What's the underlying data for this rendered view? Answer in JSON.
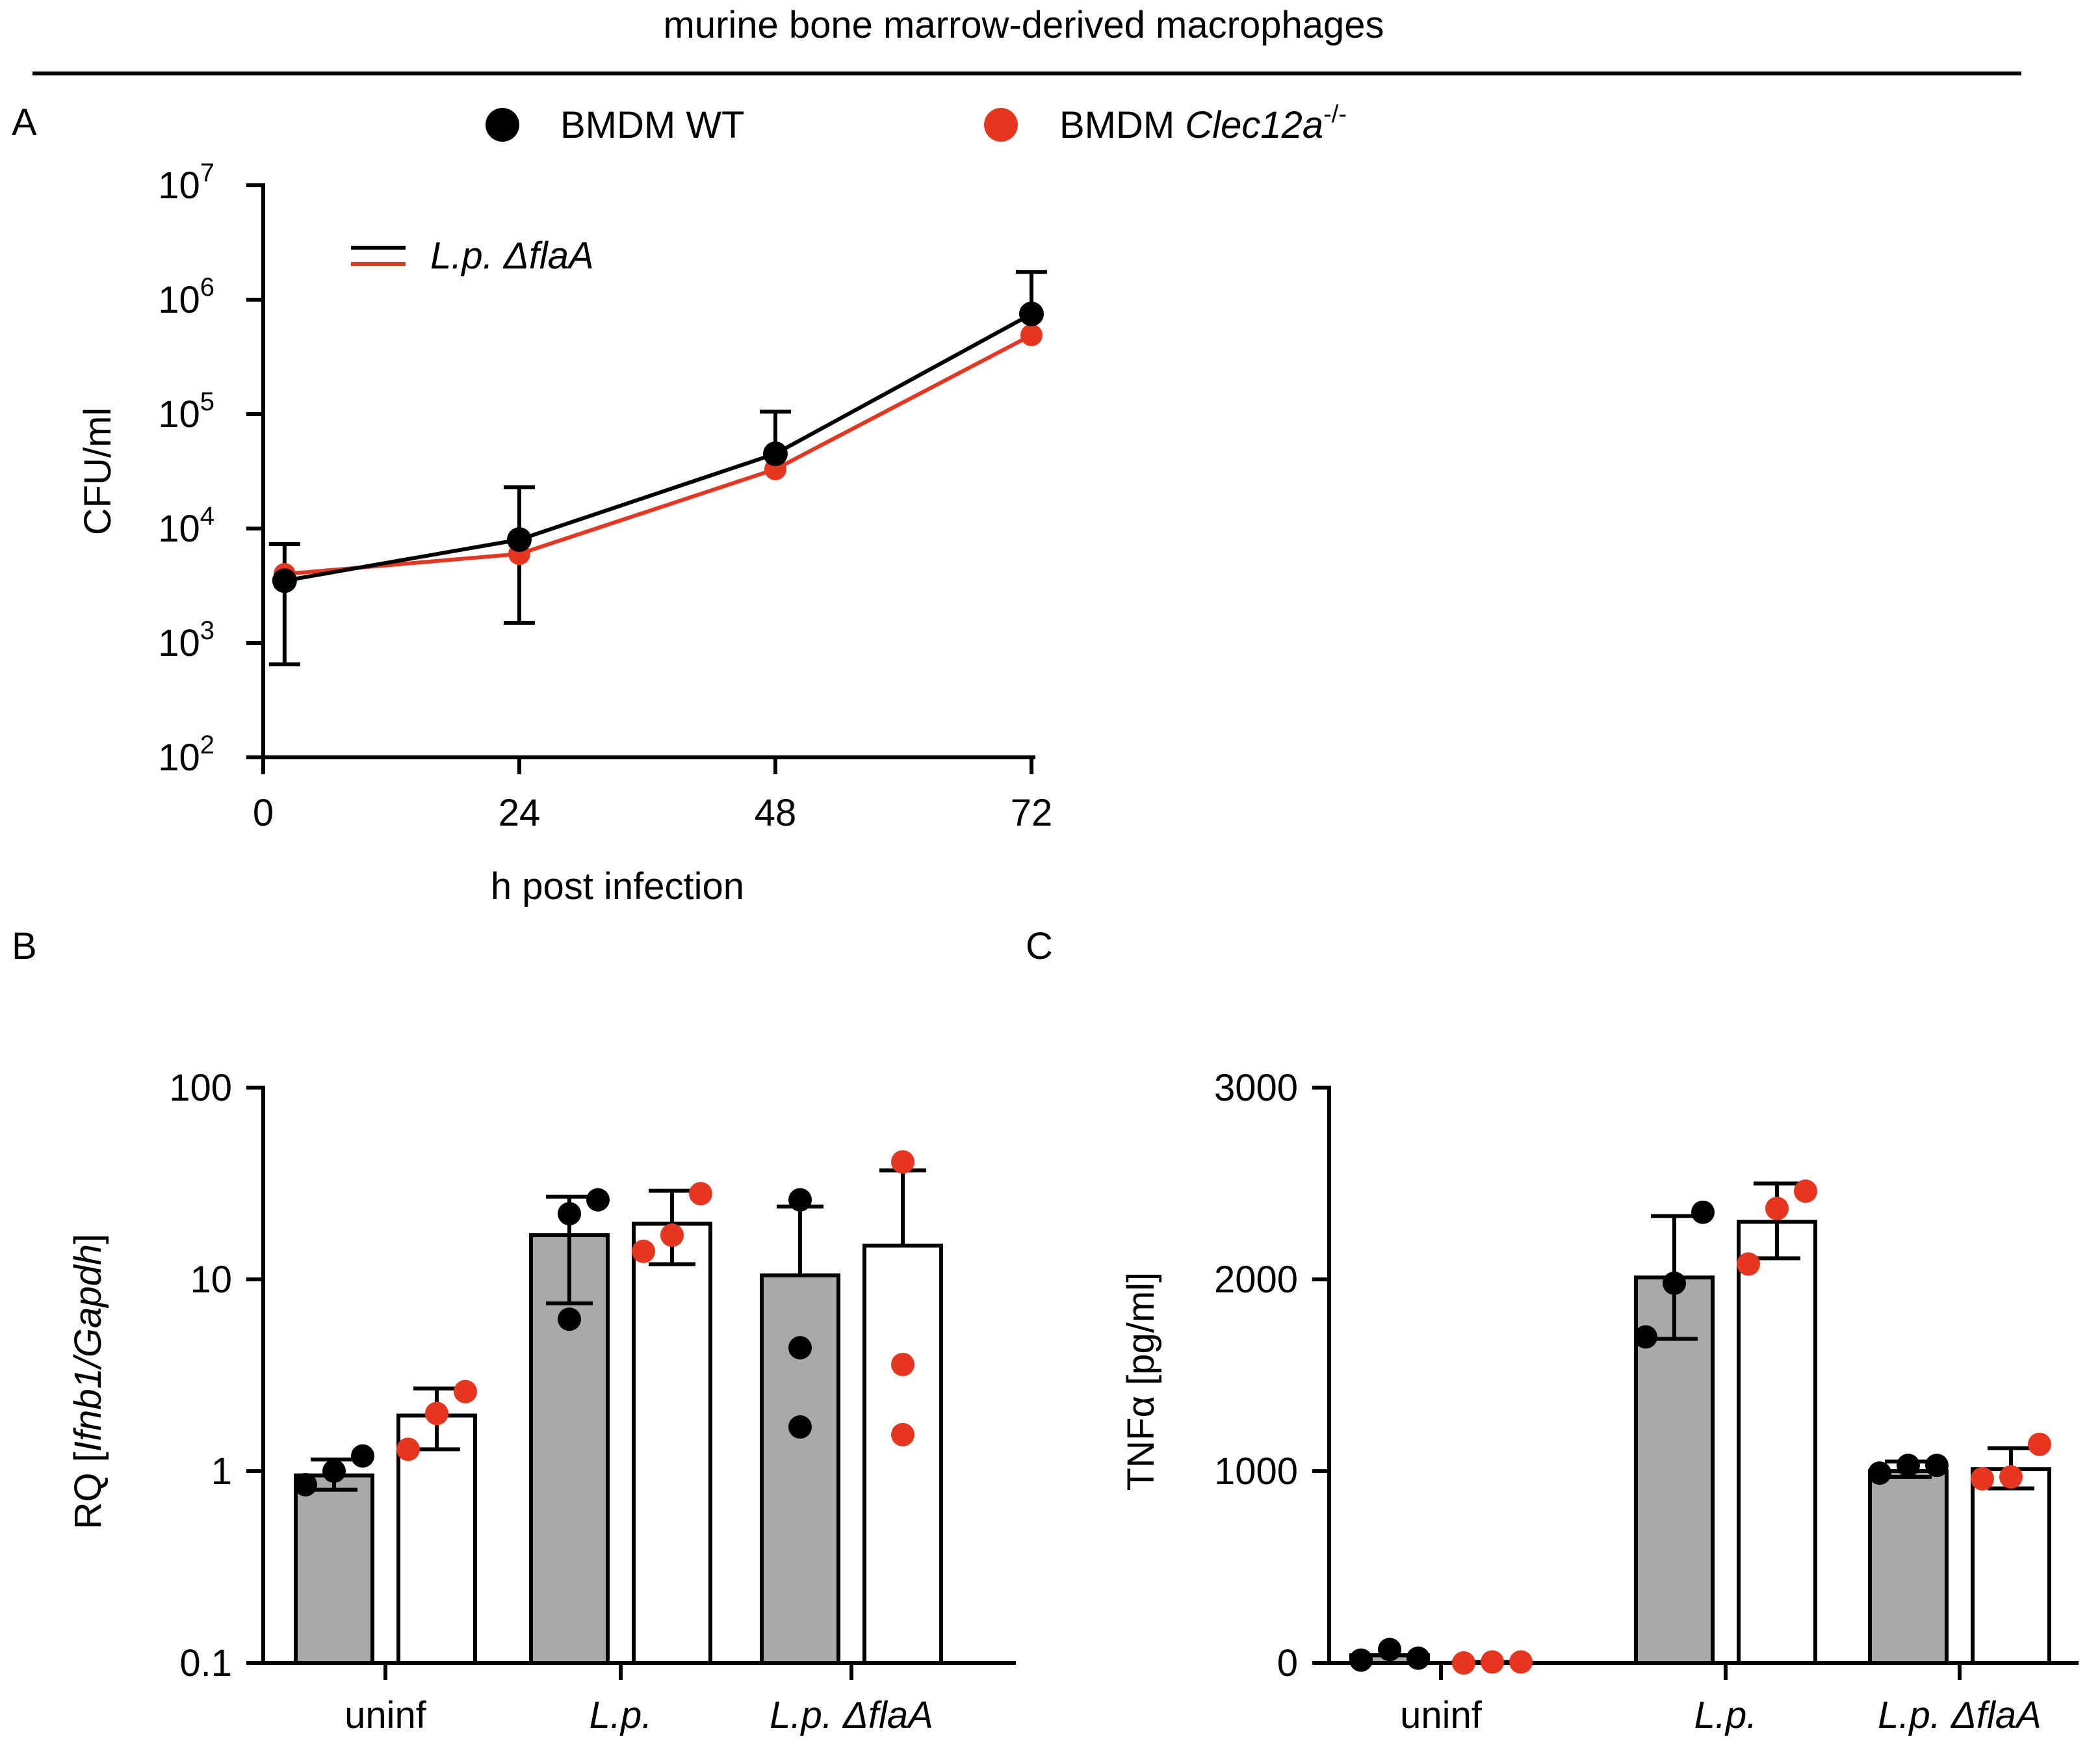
{
  "figure_title": "murine bone marrow-derived macrophages",
  "legend": {
    "wt_label": "BMDM WT",
    "ko_label_prefix": "BMDM ",
    "ko_label_gene": "Clec12a",
    "ko_label_sup": "-/-",
    "wt_color": "#000000",
    "ko_color": "#e8351f"
  },
  "panels": {
    "a": "A",
    "b": "B",
    "c": "C"
  },
  "chart_data": [
    {
      "id": "A",
      "type": "line",
      "yscale": "log",
      "ylim": [
        100,
        10000000
      ],
      "xlim": [
        0,
        72
      ],
      "xticks": [
        0,
        24,
        48,
        72
      ],
      "xtick_labels": [
        "0",
        "24",
        "48",
        "72"
      ],
      "ytick_base": "10",
      "ytick_exponents": [
        "2",
        "3",
        "4",
        "5",
        "6",
        "7"
      ],
      "xlabel": "h post infection",
      "ylabel": "CFU/ml",
      "inset_legend": "L.p. ΔflaA",
      "x": [
        2,
        24,
        48,
        72
      ],
      "series": [
        {
          "name": "BMDM WT",
          "color": "#000000",
          "values": [
            3500,
            8000,
            45000,
            750000
          ],
          "err_low": [
            650,
            1500,
            null,
            null
          ],
          "err_high": [
            7300,
            23000,
            105000,
            1750000
          ]
        },
        {
          "name": "BMDM Clec12a-/-",
          "color": "#e8351f",
          "values": [
            4000,
            6000,
            33000,
            490000
          ]
        }
      ]
    },
    {
      "id": "B",
      "type": "bar",
      "yscale": "log",
      "ylim": [
        0.1,
        100
      ],
      "yticks": [
        0.1,
        1,
        10,
        100
      ],
      "ytick_labels": [
        "0.1",
        "1",
        "10",
        "100"
      ],
      "ylabel_prefix": "RQ [",
      "ylabel_italic": "Ifnb1/Gapdh",
      "ylabel_suffix": "]",
      "categories": [
        "uninf",
        "L.p.",
        "L.p. ΔflaA"
      ],
      "category_italic": [
        false,
        true,
        true
      ],
      "series": [
        {
          "name": "BMDM WT",
          "fill": "#a9a9a9",
          "dot_color": "#000000",
          "values": [
            0.95,
            17,
            10.5
          ],
          "err": [
            [
              0.8,
              1.15
            ],
            [
              7.5,
              27
            ],
            [
              null,
              24
            ]
          ],
          "points": [
            [
              0.85,
              1.0,
              1.2
            ],
            [
              6.2,
              22,
              26
            ],
            [
              1.7,
              4.4,
              26
            ]
          ]
        },
        {
          "name": "BMDM Clec12a-/-",
          "fill": "#ffffff",
          "dot_color": "#e8351f",
          "values": [
            1.95,
            19.5,
            15
          ],
          "err": [
            [
              1.3,
              2.7
            ],
            [
              12,
              29
            ],
            [
              null,
              37
            ]
          ],
          "points": [
            [
              1.3,
              2.0,
              2.6
            ],
            [
              14,
              17,
              28
            ],
            [
              1.55,
              3.6,
              41
            ]
          ]
        }
      ]
    },
    {
      "id": "C",
      "type": "bar",
      "yscale": "linear",
      "ylim": [
        0,
        3000
      ],
      "yticks": [
        0,
        1000,
        2000,
        3000
      ],
      "ytick_labels": [
        "0",
        "1000",
        "2000",
        "3000"
      ],
      "ylabel": "TNFα [pg/ml]",
      "categories": [
        "uninf",
        "L.p.",
        "L.p. ΔflaA"
      ],
      "category_italic": [
        false,
        true,
        true
      ],
      "series": [
        {
          "name": "BMDM WT",
          "fill": "#a9a9a9",
          "dot_color": "#000000",
          "values": [
            40,
            2010,
            1000
          ],
          "err": [
            null,
            [
              1690,
              2330
            ],
            [
              970,
              1050
            ]
          ],
          "points": [
            [
              15,
              70,
              25
            ],
            [
              1700,
              1980,
              2350
            ],
            [
              990,
              1030,
              1030
            ]
          ]
        },
        {
          "name": "BMDM Clec12a-/-",
          "fill": "#ffffff",
          "dot_color": "#e8351f",
          "values": [
            5,
            2300,
            1010
          ],
          "err": [
            null,
            [
              2110,
              2500
            ],
            [
              910,
              1120
            ]
          ],
          "points": [
            [
              0,
              5,
              5
            ],
            [
              2080,
              2370,
              2460
            ],
            [
              960,
              970,
              1140
            ]
          ]
        }
      ]
    }
  ]
}
